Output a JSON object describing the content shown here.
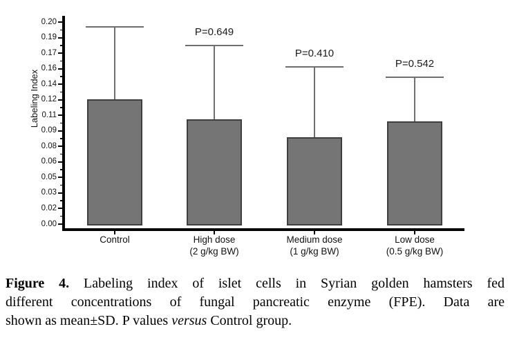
{
  "figure": {
    "caption": {
      "lines": [
        {
          "justify": true,
          "segments": [
            {
              "text": "Figure 4.",
              "bold": true
            },
            {
              "text": " Labeling index of islet cells in Syrian golden hamsters fed"
            }
          ]
        },
        {
          "justify": true,
          "segments": [
            {
              "text": "different concentrations of fungal pancreatic enzyme (FPE). Data are"
            }
          ]
        },
        {
          "justify": false,
          "segments": [
            {
              "text": "shown as mean±SD. P values "
            },
            {
              "text": "versus",
              "italic": true
            },
            {
              "text": " Control group."
            }
          ]
        }
      ]
    }
  },
  "chart_data": {
    "type": "bar",
    "title": "",
    "xlabel": "",
    "ylabel": "Labeling Index",
    "ylim": [
      0,
      0.2
    ],
    "y_tick_labels": [
      "0.00",
      "0.02",
      "0.03",
      "0.05",
      "0.06",
      "0.08",
      "0.09",
      "0.11",
      "0.12",
      "0.14",
      "0.16",
      "0.17",
      "0.19",
      "0.20"
    ],
    "grid": false,
    "legend": null,
    "categories": [
      "Control",
      "High dose",
      "Medium dose",
      "Low dose"
    ],
    "category_sublabels": [
      "",
      "(2 g/kg BW)",
      "(1 g/kg BW)",
      "(0.5 g/kg BW)"
    ],
    "means": [
      0.121,
      0.105,
      0.086,
      0.102
    ],
    "sd": [
      0.076,
      0.075,
      0.075,
      0.047
    ],
    "sd_upper": [
      0.197,
      0.18,
      0.161,
      0.149
    ],
    "p_values": [
      "",
      "P=0.649",
      "P=0.410",
      "P=0.542"
    ],
    "error_bars": "upper only, with caps",
    "bar_fill_color": "#757575",
    "bar_border_color": "#3e3e3e",
    "error_bar_color": "#6e6e6e",
    "axis_color": "#000000"
  }
}
